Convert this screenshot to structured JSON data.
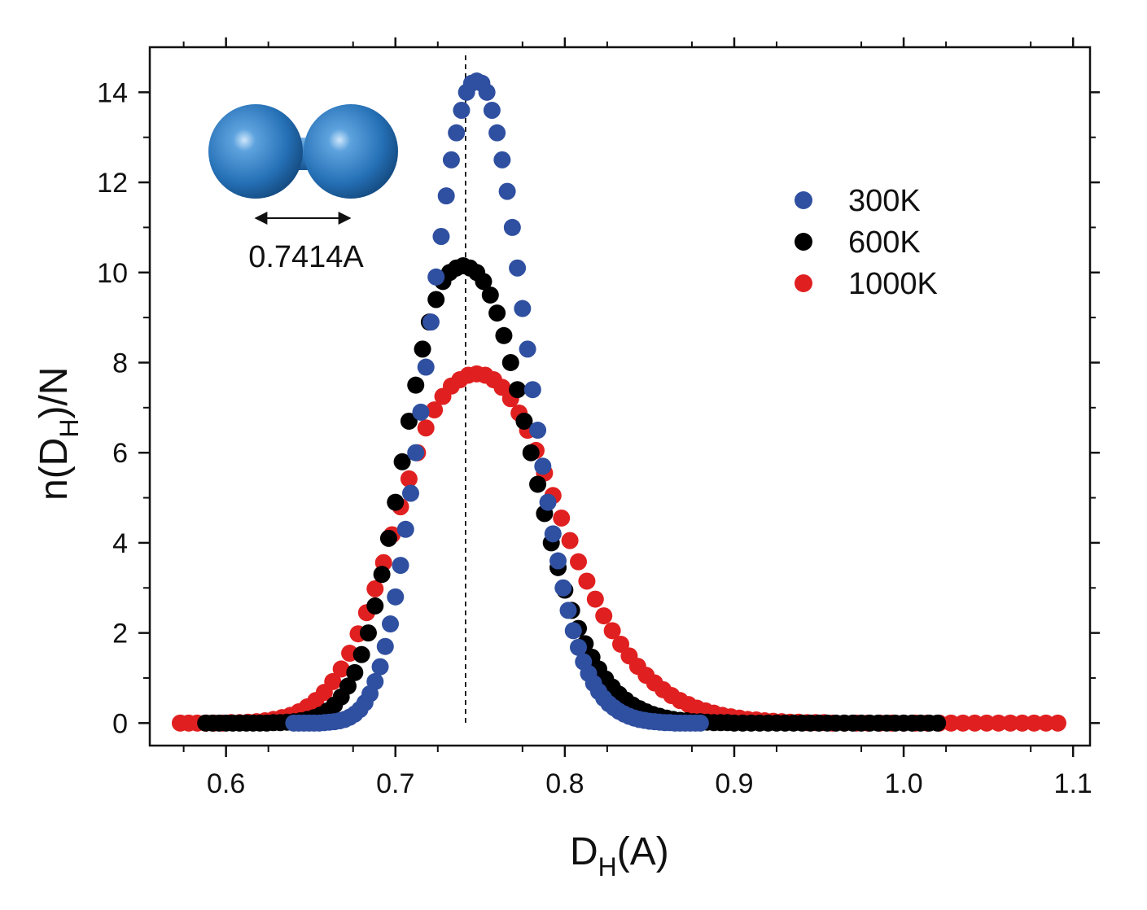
{
  "chart_data": {
    "type": "scatter",
    "xlabel": {
      "main": "D",
      "sub": "H",
      "rest": "(A)"
    },
    "ylabel": {
      "pre": "n(D",
      "sub": "H",
      "post": ")/N"
    },
    "xlim": [
      0.555,
      1.11
    ],
    "ylim": [
      -0.5,
      15.0
    ],
    "xticks": [
      "0.6",
      "0.7",
      "0.8",
      "0.9",
      "1.0",
      "1.1"
    ],
    "yticks": [
      "0",
      "2",
      "4",
      "6",
      "8",
      "10",
      "12",
      "14"
    ],
    "legend_position": "top-right",
    "reference_line": {
      "x": 0.7414,
      "style": "dashed"
    },
    "annotation": {
      "label": "0.7414A",
      "icon": "h2-molecule-icon"
    },
    "series": [
      {
        "name": "300K",
        "color": "#2f4fa0",
        "points": [
          [
            0.64,
            0.0
          ],
          [
            0.643,
            0.0
          ],
          [
            0.646,
            0.0
          ],
          [
            0.649,
            0.0
          ],
          [
            0.652,
            0.0
          ],
          [
            0.655,
            0.0
          ],
          [
            0.658,
            0.01
          ],
          [
            0.661,
            0.02
          ],
          [
            0.664,
            0.03
          ],
          [
            0.667,
            0.05
          ],
          [
            0.67,
            0.08
          ],
          [
            0.673,
            0.13
          ],
          [
            0.676,
            0.2
          ],
          [
            0.679,
            0.3
          ],
          [
            0.682,
            0.45
          ],
          [
            0.685,
            0.65
          ],
          [
            0.688,
            0.92
          ],
          [
            0.691,
            1.25
          ],
          [
            0.694,
            1.7
          ],
          [
            0.697,
            2.2
          ],
          [
            0.7,
            2.8
          ],
          [
            0.703,
            3.5
          ],
          [
            0.706,
            4.3
          ],
          [
            0.709,
            5.1
          ],
          [
            0.712,
            6.0
          ],
          [
            0.715,
            6.9
          ],
          [
            0.718,
            7.9
          ],
          [
            0.721,
            8.9
          ],
          [
            0.724,
            9.9
          ],
          [
            0.727,
            10.8
          ],
          [
            0.73,
            11.7
          ],
          [
            0.733,
            12.5
          ],
          [
            0.736,
            13.1
          ],
          [
            0.739,
            13.6
          ],
          [
            0.742,
            14.0
          ],
          [
            0.745,
            14.2
          ],
          [
            0.748,
            14.25
          ],
          [
            0.751,
            14.2
          ],
          [
            0.754,
            14.0
          ],
          [
            0.757,
            13.6
          ],
          [
            0.76,
            13.1
          ],
          [
            0.763,
            12.5
          ],
          [
            0.766,
            11.8
          ],
          [
            0.769,
            11.0
          ],
          [
            0.772,
            10.1
          ],
          [
            0.775,
            9.2
          ],
          [
            0.778,
            8.3
          ],
          [
            0.781,
            7.4
          ],
          [
            0.784,
            6.5
          ],
          [
            0.787,
            5.7
          ],
          [
            0.79,
            4.9
          ],
          [
            0.793,
            4.2
          ],
          [
            0.796,
            3.6
          ],
          [
            0.799,
            3.0
          ],
          [
            0.802,
            2.5
          ],
          [
            0.805,
            2.05
          ],
          [
            0.808,
            1.68
          ],
          [
            0.811,
            1.36
          ],
          [
            0.814,
            1.1
          ],
          [
            0.817,
            0.88
          ],
          [
            0.82,
            0.7
          ],
          [
            0.823,
            0.55
          ],
          [
            0.826,
            0.43
          ],
          [
            0.829,
            0.34
          ],
          [
            0.832,
            0.26
          ],
          [
            0.835,
            0.2
          ],
          [
            0.838,
            0.15
          ],
          [
            0.841,
            0.11
          ],
          [
            0.844,
            0.08
          ],
          [
            0.847,
            0.06
          ],
          [
            0.85,
            0.04
          ],
          [
            0.853,
            0.03
          ],
          [
            0.856,
            0.02
          ],
          [
            0.859,
            0.01
          ],
          [
            0.862,
            0.01
          ],
          [
            0.865,
            0.0
          ],
          [
            0.868,
            0.0
          ],
          [
            0.871,
            0.0
          ],
          [
            0.874,
            0.0
          ],
          [
            0.877,
            0.0
          ],
          [
            0.88,
            0.0
          ]
        ]
      },
      {
        "name": "600K",
        "color": "#000000",
        "points": [
          [
            0.588,
            0.0
          ],
          [
            0.592,
            0.0
          ],
          [
            0.596,
            0.0
          ],
          [
            0.6,
            0.0
          ],
          [
            0.604,
            0.0
          ],
          [
            0.608,
            0.0
          ],
          [
            0.612,
            0.0
          ],
          [
            0.616,
            0.0
          ],
          [
            0.62,
            0.0
          ],
          [
            0.624,
            0.0
          ],
          [
            0.628,
            0.01
          ],
          [
            0.632,
            0.01
          ],
          [
            0.636,
            0.02
          ],
          [
            0.64,
            0.03
          ],
          [
            0.644,
            0.05
          ],
          [
            0.648,
            0.08
          ],
          [
            0.652,
            0.12
          ],
          [
            0.656,
            0.18
          ],
          [
            0.66,
            0.27
          ],
          [
            0.664,
            0.4
          ],
          [
            0.668,
            0.58
          ],
          [
            0.672,
            0.82
          ],
          [
            0.676,
            1.12
          ],
          [
            0.68,
            1.52
          ],
          [
            0.684,
            2.0
          ],
          [
            0.688,
            2.6
          ],
          [
            0.692,
            3.3
          ],
          [
            0.696,
            4.1
          ],
          [
            0.7,
            4.9
          ],
          [
            0.704,
            5.8
          ],
          [
            0.708,
            6.7
          ],
          [
            0.712,
            7.5
          ],
          [
            0.716,
            8.3
          ],
          [
            0.72,
            8.9
          ],
          [
            0.724,
            9.4
          ],
          [
            0.728,
            9.8
          ],
          [
            0.732,
            10.0
          ],
          [
            0.736,
            10.1
          ],
          [
            0.74,
            10.15
          ],
          [
            0.744,
            10.1
          ],
          [
            0.748,
            10.0
          ],
          [
            0.752,
            9.8
          ],
          [
            0.756,
            9.5
          ],
          [
            0.76,
            9.1
          ],
          [
            0.764,
            8.6
          ],
          [
            0.768,
            8.0
          ],
          [
            0.772,
            7.4
          ],
          [
            0.776,
            6.7
          ],
          [
            0.78,
            6.0
          ],
          [
            0.784,
            5.3
          ],
          [
            0.788,
            4.65
          ],
          [
            0.792,
            4.0
          ],
          [
            0.796,
            3.45
          ],
          [
            0.8,
            2.95
          ],
          [
            0.804,
            2.5
          ],
          [
            0.808,
            2.1
          ],
          [
            0.812,
            1.76
          ],
          [
            0.816,
            1.46
          ],
          [
            0.82,
            1.2
          ],
          [
            0.824,
            0.98
          ],
          [
            0.828,
            0.8
          ],
          [
            0.832,
            0.64
          ],
          [
            0.836,
            0.51
          ],
          [
            0.84,
            0.4
          ],
          [
            0.844,
            0.32
          ],
          [
            0.848,
            0.25
          ],
          [
            0.852,
            0.19
          ],
          [
            0.856,
            0.15
          ],
          [
            0.86,
            0.11
          ],
          [
            0.864,
            0.08
          ],
          [
            0.868,
            0.06
          ],
          [
            0.872,
            0.05
          ],
          [
            0.876,
            0.03
          ],
          [
            0.88,
            0.03
          ],
          [
            0.884,
            0.02
          ],
          [
            0.888,
            0.01
          ],
          [
            0.892,
            0.01
          ],
          [
            0.896,
            0.01
          ],
          [
            0.9,
            0.0
          ],
          [
            0.905,
            0.0
          ],
          [
            0.91,
            0.0
          ],
          [
            0.915,
            0.0
          ],
          [
            0.92,
            0.0
          ],
          [
            0.925,
            0.0
          ],
          [
            0.93,
            0.0
          ],
          [
            0.935,
            0.0
          ],
          [
            0.94,
            0.0
          ],
          [
            0.945,
            0.0
          ],
          [
            0.95,
            0.0
          ],
          [
            0.955,
            0.0
          ],
          [
            0.96,
            0.0
          ],
          [
            0.965,
            0.0
          ],
          [
            0.97,
            0.0
          ],
          [
            0.975,
            0.0
          ],
          [
            0.98,
            0.0
          ],
          [
            0.985,
            0.0
          ],
          [
            0.99,
            0.0
          ],
          [
            0.995,
            0.0
          ],
          [
            1.0,
            0.0
          ],
          [
            1.005,
            0.0
          ],
          [
            1.01,
            0.0
          ],
          [
            1.015,
            0.0
          ],
          [
            1.02,
            0.0
          ]
        ]
      },
      {
        "name": "1000K",
        "color": "#e02020",
        "points": [
          [
            0.573,
            0.0
          ],
          [
            0.578,
            0.0
          ],
          [
            0.583,
            0.0
          ],
          [
            0.588,
            0.0
          ],
          [
            0.593,
            0.0
          ],
          [
            0.598,
            0.0
          ],
          [
            0.603,
            0.01
          ],
          [
            0.608,
            0.01
          ],
          [
            0.613,
            0.02
          ],
          [
            0.618,
            0.03
          ],
          [
            0.623,
            0.05
          ],
          [
            0.628,
            0.08
          ],
          [
            0.633,
            0.12
          ],
          [
            0.638,
            0.17
          ],
          [
            0.643,
            0.25
          ],
          [
            0.648,
            0.36
          ],
          [
            0.653,
            0.5
          ],
          [
            0.658,
            0.68
          ],
          [
            0.663,
            0.92
          ],
          [
            0.668,
            1.2
          ],
          [
            0.673,
            1.55
          ],
          [
            0.678,
            1.98
          ],
          [
            0.683,
            2.45
          ],
          [
            0.688,
            2.98
          ],
          [
            0.693,
            3.56
          ],
          [
            0.698,
            4.18
          ],
          [
            0.703,
            4.8
          ],
          [
            0.708,
            5.42
          ],
          [
            0.713,
            6.0
          ],
          [
            0.718,
            6.55
          ],
          [
            0.723,
            6.95
          ],
          [
            0.728,
            7.25
          ],
          [
            0.733,
            7.48
          ],
          [
            0.738,
            7.62
          ],
          [
            0.743,
            7.72
          ],
          [
            0.748,
            7.75
          ],
          [
            0.753,
            7.72
          ],
          [
            0.758,
            7.62
          ],
          [
            0.763,
            7.45
          ],
          [
            0.768,
            7.2
          ],
          [
            0.773,
            6.88
          ],
          [
            0.778,
            6.5
          ],
          [
            0.783,
            6.05
          ],
          [
            0.788,
            5.55
          ],
          [
            0.793,
            5.05
          ],
          [
            0.798,
            4.55
          ],
          [
            0.803,
            4.05
          ],
          [
            0.808,
            3.58
          ],
          [
            0.813,
            3.15
          ],
          [
            0.818,
            2.75
          ],
          [
            0.823,
            2.38
          ],
          [
            0.828,
            2.05
          ],
          [
            0.833,
            1.75
          ],
          [
            0.838,
            1.49
          ],
          [
            0.843,
            1.26
          ],
          [
            0.848,
            1.06
          ],
          [
            0.853,
            0.89
          ],
          [
            0.858,
            0.74
          ],
          [
            0.863,
            0.61
          ],
          [
            0.868,
            0.5
          ],
          [
            0.873,
            0.41
          ],
          [
            0.878,
            0.33
          ],
          [
            0.883,
            0.27
          ],
          [
            0.888,
            0.22
          ],
          [
            0.893,
            0.17
          ],
          [
            0.898,
            0.14
          ],
          [
            0.903,
            0.11
          ],
          [
            0.908,
            0.08
          ],
          [
            0.913,
            0.07
          ],
          [
            0.918,
            0.05
          ],
          [
            0.923,
            0.04
          ],
          [
            0.928,
            0.03
          ],
          [
            0.933,
            0.02
          ],
          [
            0.938,
            0.02
          ],
          [
            0.943,
            0.01
          ],
          [
            0.948,
            0.01
          ],
          [
            0.953,
            0.01
          ],
          [
            0.958,
            0.0
          ],
          [
            0.965,
            0.0
          ],
          [
            0.972,
            0.0
          ],
          [
            0.979,
            0.0
          ],
          [
            0.986,
            0.0
          ],
          [
            0.993,
            0.0
          ],
          [
            1.0,
            0.0
          ],
          [
            1.007,
            0.0
          ],
          [
            1.014,
            0.0
          ],
          [
            1.021,
            0.0
          ],
          [
            1.028,
            0.0
          ],
          [
            1.035,
            0.0
          ],
          [
            1.042,
            0.0
          ],
          [
            1.049,
            0.0
          ],
          [
            1.056,
            0.0
          ],
          [
            1.063,
            0.0
          ],
          [
            1.07,
            0.0
          ],
          [
            1.077,
            0.0
          ],
          [
            1.084,
            0.0
          ],
          [
            1.091,
            0.0
          ]
        ]
      }
    ]
  }
}
